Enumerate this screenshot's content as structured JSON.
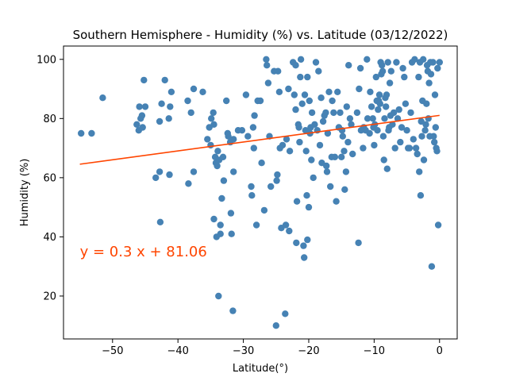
{
  "chart_data": {
    "type": "scatter",
    "title": "Southern Hemisphere - Humidity (%) vs. Latitude (03/12/2022)",
    "xlabel": "Latitude(°)",
    "ylabel": "Humidity (%)",
    "xlim": [
      -57.5,
      2.7
    ],
    "ylim": [
      5.5,
      104.5
    ],
    "xticks": [
      -50,
      -40,
      -30,
      -20,
      -10,
      0
    ],
    "yticks": [
      20,
      40,
      60,
      80,
      100
    ],
    "grid": false,
    "marker_color": "#4682b4",
    "line_color": "#ff4500",
    "regression": {
      "slope": 0.3,
      "intercept": 81.06,
      "x_range": [
        -55,
        0
      ]
    },
    "annotation": {
      "text": "y = 0.3 x + 81.06",
      "x": -55,
      "y": 35
    },
    "points": [
      [
        -54.8,
        75
      ],
      [
        -53.2,
        75
      ],
      [
        -51.5,
        87
      ],
      [
        -46.3,
        78
      ],
      [
        -46,
        76
      ],
      [
        -45.9,
        84
      ],
      [
        -45.7,
        80
      ],
      [
        -45.5,
        81
      ],
      [
        -45.4,
        77
      ],
      [
        -45.2,
        93
      ],
      [
        -45,
        84
      ],
      [
        -43.4,
        60
      ],
      [
        -42.8,
        62
      ],
      [
        -42.8,
        79
      ],
      [
        -42.7,
        45
      ],
      [
        -42.5,
        85
      ],
      [
        -42,
        93
      ],
      [
        -41.4,
        80
      ],
      [
        -41.3,
        61
      ],
      [
        -41.2,
        84
      ],
      [
        -41,
        89
      ],
      [
        -38.5,
        86
      ],
      [
        -38.4,
        58
      ],
      [
        -38,
        82
      ],
      [
        -37.6,
        90
      ],
      [
        -37.6,
        62
      ],
      [
        -36.2,
        89
      ],
      [
        -35.5,
        73
      ],
      [
        -35.2,
        77
      ],
      [
        -35,
        71
      ],
      [
        -34.9,
        80
      ],
      [
        -34.6,
        82
      ],
      [
        -34.5,
        78
      ],
      [
        -34.5,
        46
      ],
      [
        -34.3,
        67
      ],
      [
        -34.2,
        65
      ],
      [
        -34.1,
        40
      ],
      [
        -34,
        64
      ],
      [
        -33.9,
        69
      ],
      [
        -33.8,
        20
      ],
      [
        -33.7,
        66
      ],
      [
        -33.5,
        41
      ],
      [
        -33.5,
        44
      ],
      [
        -33.3,
        53
      ],
      [
        -33.1,
        67
      ],
      [
        -33,
        59
      ],
      [
        -32.6,
        86
      ],
      [
        -32.4,
        75
      ],
      [
        -32.3,
        74
      ],
      [
        -32,
        72
      ],
      [
        -31.9,
        48
      ],
      [
        -31.8,
        41
      ],
      [
        -31.6,
        15
      ],
      [
        -31.5,
        62
      ],
      [
        -31.5,
        73
      ],
      [
        -30.8,
        76
      ],
      [
        -30.2,
        76
      ],
      [
        -29.6,
        88
      ],
      [
        -29.3,
        74
      ],
      [
        -28.8,
        57
      ],
      [
        -28.7,
        54
      ],
      [
        -28.5,
        77
      ],
      [
        -28.4,
        70
      ],
      [
        -28.3,
        81
      ],
      [
        -28,
        44
      ],
      [
        -27.8,
        86
      ],
      [
        -27.4,
        86
      ],
      [
        -27.2,
        65
      ],
      [
        -26.8,
        49
      ],
      [
        -26.5,
        100
      ],
      [
        -26.4,
        98
      ],
      [
        -26.2,
        92
      ],
      [
        -26,
        74
      ],
      [
        -25.8,
        57
      ],
      [
        -25.3,
        96
      ],
      [
        -25,
        10
      ],
      [
        -24.9,
        59
      ],
      [
        -24.8,
        61
      ],
      [
        -24.7,
        96
      ],
      [
        -24.5,
        89
      ],
      [
        -24.4,
        70
      ],
      [
        -24.2,
        43
      ],
      [
        -24,
        71
      ],
      [
        -23.6,
        14
      ],
      [
        -23.5,
        44
      ],
      [
        -23.4,
        73
      ],
      [
        -23.1,
        90
      ],
      [
        -23,
        42
      ],
      [
        -22.9,
        69
      ],
      [
        -22.4,
        99
      ],
      [
        -22.2,
        88
      ],
      [
        -22,
        98
      ],
      [
        -22,
        83
      ],
      [
        -21.9,
        38
      ],
      [
        -21.8,
        52
      ],
      [
        -21.6,
        78
      ],
      [
        -21.5,
        77
      ],
      [
        -21.4,
        72
      ],
      [
        -21.3,
        94
      ],
      [
        -21.2,
        100
      ],
      [
        -21,
        85
      ],
      [
        -20.8,
        37
      ],
      [
        -20.7,
        33
      ],
      [
        -20.6,
        88
      ],
      [
        -20.5,
        76
      ],
      [
        -20.4,
        69
      ],
      [
        -20.3,
        54
      ],
      [
        -20.2,
        94
      ],
      [
        -20.2,
        39
      ],
      [
        -20,
        50
      ],
      [
        -19.9,
        86
      ],
      [
        -19.8,
        75
      ],
      [
        -19.7,
        77
      ],
      [
        -19.6,
        66
      ],
      [
        -19.5,
        82
      ],
      [
        -19.3,
        60
      ],
      [
        -19.1,
        78
      ],
      [
        -18.9,
        99
      ],
      [
        -18.7,
        76
      ],
      [
        -18.5,
        96
      ],
      [
        -18.3,
        71
      ],
      [
        -18.1,
        87
      ],
      [
        -18,
        65
      ],
      [
        -17.8,
        79
      ],
      [
        -17.6,
        81
      ],
      [
        -17.4,
        82
      ],
      [
        -17.3,
        64
      ],
      [
        -17.2,
        62
      ],
      [
        -17.1,
        75
      ],
      [
        -16.9,
        89
      ],
      [
        -16.7,
        57
      ],
      [
        -16.5,
        67
      ],
      [
        -16.4,
        86
      ],
      [
        -16.2,
        82
      ],
      [
        -16,
        67
      ],
      [
        -15.8,
        52
      ],
      [
        -15.6,
        89
      ],
      [
        -15.4,
        77
      ],
      [
        -15.2,
        82
      ],
      [
        -15,
        67
      ],
      [
        -14.9,
        76
      ],
      [
        -14.8,
        74
      ],
      [
        -14.6,
        69
      ],
      [
        -14.5,
        56
      ],
      [
        -14.3,
        62
      ],
      [
        -14.2,
        84
      ],
      [
        -14,
        72
      ],
      [
        -13.9,
        98
      ],
      [
        -13.7,
        80
      ],
      [
        -13.5,
        78
      ],
      [
        -13.3,
        68
      ],
      [
        -12.6,
        82
      ],
      [
        -12.4,
        38
      ],
      [
        -12.3,
        90
      ],
      [
        -12.1,
        97
      ],
      [
        -12,
        76
      ],
      [
        -11.7,
        70
      ],
      [
        -11.6,
        77
      ],
      [
        -11.3,
        76
      ],
      [
        -11.1,
        100
      ],
      [
        -11,
        80
      ],
      [
        -10.7,
        75
      ],
      [
        -10.6,
        89
      ],
      [
        -10.4,
        84
      ],
      [
        -10.2,
        80
      ],
      [
        -10.1,
        77
      ],
      [
        -10,
        71
      ],
      [
        -9.9,
        78
      ],
      [
        -9.7,
        94
      ],
      [
        -9.6,
        86
      ],
      [
        -9.5,
        76
      ],
      [
        -9.4,
        83
      ],
      [
        -9.3,
        86
      ],
      [
        -9.2,
        88
      ],
      [
        -9.1,
        85
      ],
      [
        -9,
        99
      ],
      [
        -8.9,
        95
      ],
      [
        -8.8,
        98
      ],
      [
        -8.7,
        96
      ],
      [
        -8.6,
        74
      ],
      [
        -8.5,
        66
      ],
      [
        -8.4,
        80
      ],
      [
        -8.3,
        87
      ],
      [
        -8.2,
        84
      ],
      [
        -8.1,
        88
      ],
      [
        -8,
        63
      ],
      [
        -7.9,
        99
      ],
      [
        -7.8,
        76
      ],
      [
        -7.7,
        77
      ],
      [
        -7.6,
        92
      ],
      [
        -7.5,
        81
      ],
      [
        -7.4,
        96
      ],
      [
        -7.2,
        78
      ],
      [
        -7,
        82
      ],
      [
        -6.8,
        70
      ],
      [
        -6.6,
        99
      ],
      [
        -6.4,
        80
      ],
      [
        -6.2,
        83
      ],
      [
        -6,
        72
      ],
      [
        -5.8,
        77
      ],
      [
        -5.6,
        97
      ],
      [
        -5.4,
        94
      ],
      [
        -5.2,
        85
      ],
      [
        -5,
        76
      ],
      [
        -4.8,
        70
      ],
      [
        -4.6,
        70
      ],
      [
        -4.4,
        82
      ],
      [
        -4.2,
        99
      ],
      [
        -4,
        73
      ],
      [
        -3.8,
        100
      ],
      [
        -3.6,
        70
      ],
      [
        -3.4,
        68
      ],
      [
        -3.2,
        94
      ],
      [
        -3.1,
        62
      ],
      [
        -3,
        99
      ],
      [
        -2.9,
        54
      ],
      [
        -2.8,
        79
      ],
      [
        -2.7,
        74
      ],
      [
        -2.6,
        86
      ],
      [
        -2.5,
        100
      ],
      [
        -2.4,
        66
      ],
      [
        -2.2,
        76
      ],
      [
        -2.1,
        78
      ],
      [
        -2,
        85
      ],
      [
        -1.9,
        98
      ],
      [
        -1.8,
        96
      ],
      [
        -1.7,
        80
      ],
      [
        -1.6,
        92
      ],
      [
        -1.5,
        74
      ],
      [
        -1.4,
        99
      ],
      [
        -1.3,
        95
      ],
      [
        -1.2,
        30
      ],
      [
        -1,
        99
      ],
      [
        -0.9,
        74
      ],
      [
        -0.8,
        72
      ],
      [
        -0.7,
        88
      ],
      [
        -0.6,
        77
      ],
      [
        -0.5,
        70
      ],
      [
        -0.4,
        69
      ],
      [
        -0.3,
        97
      ],
      [
        -0.2,
        44
      ],
      [
        0,
        99
      ]
    ]
  }
}
